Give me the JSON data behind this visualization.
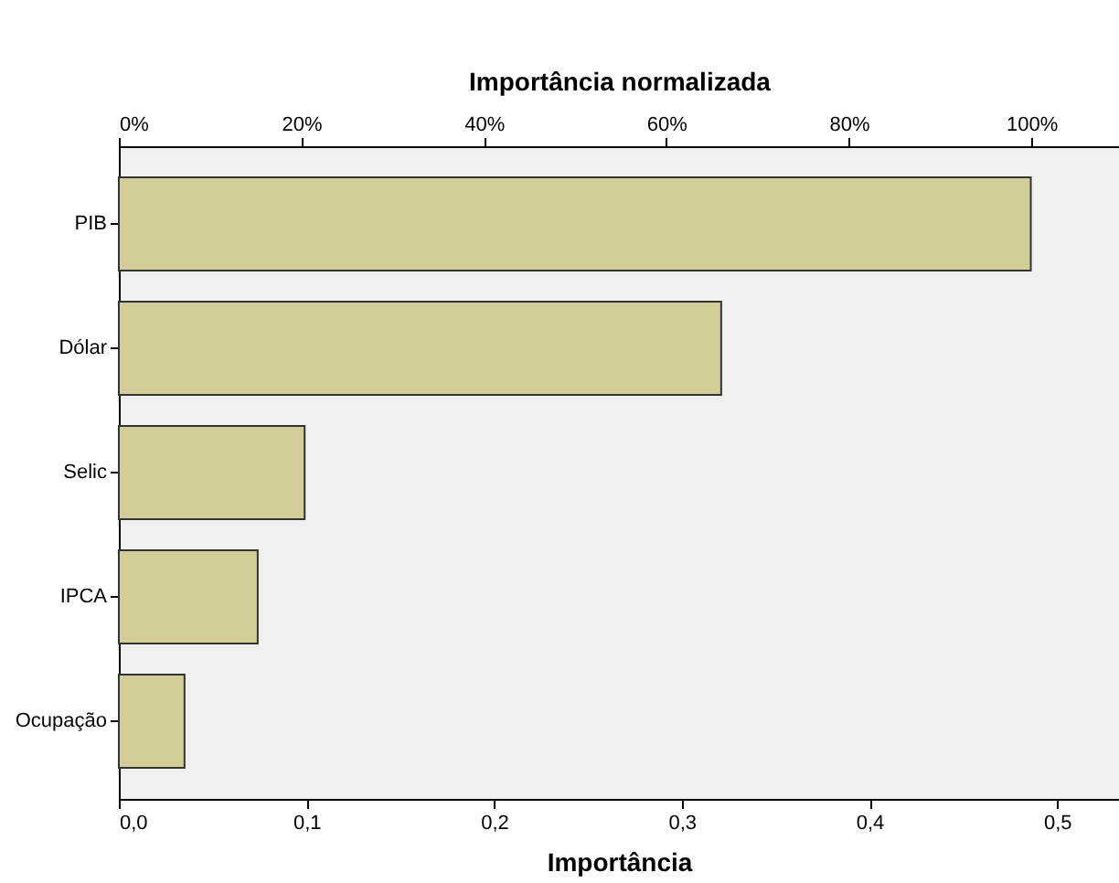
{
  "chart_data": {
    "type": "bar",
    "orientation": "horizontal",
    "xlabel": "Importância",
    "x2label": "Importância normalizada",
    "categories": [
      "PIB",
      "Dólar",
      "Selic",
      "IPCA",
      "Ocupação"
    ],
    "values": [
      0.486,
      0.321,
      0.099,
      0.074,
      0.035
    ],
    "color": "#d3ce97",
    "xlim": [
      0,
      0.533
    ],
    "xticks": [
      {
        "value": 0,
        "label": "0,0"
      },
      {
        "value": 0.1,
        "label": "0,1"
      },
      {
        "value": 0.2,
        "label": "0,2"
      },
      {
        "value": 0.3,
        "label": "0,3"
      },
      {
        "value": 0.4,
        "label": "0,4"
      },
      {
        "value": 0.5,
        "label": "0,5"
      }
    ],
    "x2lim": [
      0,
      109.6
    ],
    "x2ticks": [
      {
        "value": 0,
        "label": "0%"
      },
      {
        "value": 20,
        "label": "20%"
      },
      {
        "value": 40,
        "label": "40%"
      },
      {
        "value": 60,
        "label": "60%"
      },
      {
        "value": 80,
        "label": "80%"
      },
      {
        "value": 100,
        "label": "100%"
      }
    ],
    "grid": false
  }
}
